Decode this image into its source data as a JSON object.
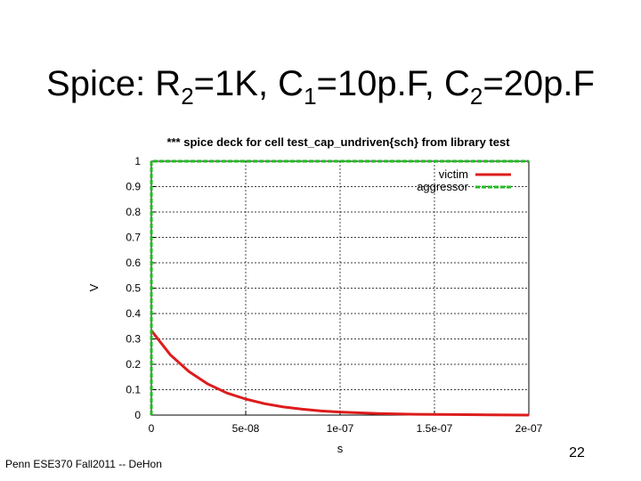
{
  "slide": {
    "title_prefix": "Spice: R",
    "r_sub": "2",
    "r_val": "=1K, C",
    "c1_sub": "1",
    "c1_val": "=10p.F, C",
    "c2_sub": "2",
    "c2_val": "=20p.F",
    "footer": "Penn ESE370 Fall2011 -- DeHon",
    "page_number": "22"
  },
  "chart_data": {
    "type": "line",
    "title": "*** spice deck for cell test_cap_undriven{sch} from library test",
    "xlabel": "s",
    "ylabel": "V",
    "xlim": [
      0,
      2e-07
    ],
    "ylim": [
      0,
      1
    ],
    "x_ticks": [
      0,
      5e-08,
      1e-07,
      1.5e-07,
      2e-07
    ],
    "x_tick_labels": [
      "0",
      "5e-08",
      "1e-07",
      "1.5e-07",
      "2e-07"
    ],
    "y_ticks": [
      0,
      0.1,
      0.2,
      0.3,
      0.4,
      0.5,
      0.6,
      0.7,
      0.8,
      0.9,
      1
    ],
    "y_tick_labels": [
      "0",
      "0.1",
      "0.2",
      "0.3",
      "0.4",
      "0.5",
      "0.6",
      "0.7",
      "0.8",
      "0.9",
      "1"
    ],
    "grid": true,
    "legend_position": "top-right",
    "series": [
      {
        "name": "victim",
        "color": "#dd1c1c",
        "style": "solid",
        "x": [
          0,
          1e-08,
          2e-08,
          3e-08,
          4e-08,
          5e-08,
          6e-08,
          7e-08,
          8e-08,
          9e-08,
          1e-07,
          1.2e-07,
          1.4e-07,
          1.6e-07,
          1.8e-07,
          2e-07
        ],
        "y": [
          0.333,
          0.238,
          0.171,
          0.122,
          0.087,
          0.063,
          0.045,
          0.032,
          0.023,
          0.016,
          0.012,
          0.006,
          0.003,
          0.002,
          0.001,
          0.0
        ]
      },
      {
        "name": "aggressor",
        "color": "#22bb22",
        "style": "dashed",
        "x": [
          0,
          0,
          2e-07
        ],
        "y": [
          0,
          1,
          1
        ]
      }
    ]
  }
}
